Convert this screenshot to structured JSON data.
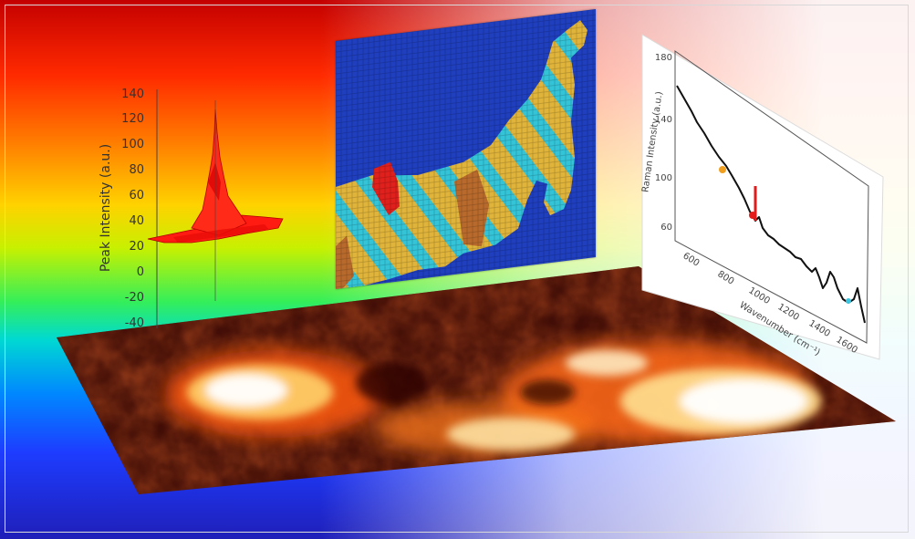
{
  "peak_plot": {
    "ylabel": "Peak Intensity (a.u.)",
    "ticks": [
      "140",
      "120",
      "100",
      "80",
      "60",
      "40",
      "20",
      "0",
      "-20",
      "-40"
    ]
  },
  "spectrum_plot": {
    "ylabel": "Raman Intensity (a.u.)",
    "xlabel": "Wavenumber (cm⁻¹)",
    "yticks": [
      "180",
      "140",
      "100",
      "60"
    ],
    "xticks": [
      "600",
      "800",
      "1000",
      "1200",
      "1400",
      "1600"
    ]
  },
  "colors": {
    "map_background": "#1f3fbf",
    "map_cyan": "#34c4d8",
    "map_yellow": "#e0b43a",
    "map_brown": "#b86a2c",
    "map_red": "#e0201c",
    "peak_red": "#ff1a12",
    "spectrum_line": "#111111",
    "marker_orange": "#f0a020",
    "marker_red": "#e41b1b"
  },
  "icons": {
    "peak_plot": "3d-peak-plot",
    "mosaic_map": "pixel-classification-map",
    "spectrum_panel": "raman-spectrum-plot",
    "floor_map": "heat-intensity-map"
  }
}
